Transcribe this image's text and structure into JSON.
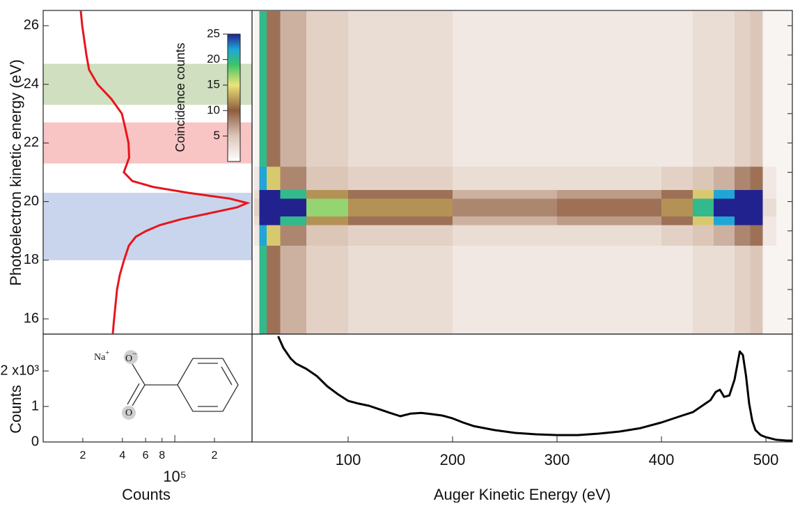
{
  "chart_data": [
    {
      "type": "line",
      "orientation": "vertical",
      "log_x": true,
      "xlabel": "Counts",
      "ylabel": "Photoelectron kinetic energy (eV)",
      "xlim": [
        10000,
        386000
      ],
      "xticks": [
        {
          "value": 20000,
          "label": "2"
        },
        {
          "value": 40000,
          "label": "4"
        },
        {
          "value": 60000,
          "label": "6"
        },
        {
          "value": 80000,
          "label": "8"
        },
        {
          "value": 100000,
          "label": "10⁵"
        },
        {
          "value": 200000,
          "label": "2"
        }
      ],
      "ylim": [
        15.48,
        26.52
      ],
      "yticks": [
        16,
        18,
        20,
        22,
        24,
        26
      ],
      "color": "#e8141c",
      "y": [
        15.5,
        16,
        16.5,
        17,
        17.5,
        18,
        18.5,
        18.8,
        19,
        19.2,
        19.4,
        19.6,
        19.8,
        19.95,
        20.1,
        20.3,
        20.5,
        20.7,
        21,
        21.5,
        22,
        22.5,
        23,
        23.5,
        24,
        24.5,
        25,
        26,
        26.5
      ],
      "values": [
        33800,
        34600,
        35500,
        36400,
        38200,
        41100,
        44800,
        50500,
        60700,
        77400,
        112000,
        182000,
        296000,
        355000,
        262000,
        126000,
        68500,
        47500,
        41000,
        45000,
        44500,
        42100,
        39600,
        33000,
        25900,
        22300,
        21300,
        19800,
        19300
      ],
      "bands": [
        {
          "from": 23.3,
          "to": 24.7,
          "color": "#cfdfbf"
        },
        {
          "from": 21.3,
          "to": 22.7,
          "color": "#f8c4c4"
        },
        {
          "from": 18.0,
          "to": 20.3,
          "color": "#c9d5ec"
        }
      ]
    },
    {
      "type": "heatmap",
      "xlim": [
        8,
        525.3
      ],
      "ylim": [
        15.48,
        26.52
      ],
      "yticks": [
        16,
        17,
        18,
        19,
        20,
        21,
        22,
        23,
        24,
        25,
        26
      ],
      "x_edges": [
        10,
        15,
        22,
        35,
        60,
        100,
        200,
        300,
        400,
        430,
        450,
        470,
        485,
        497,
        510,
        525
      ],
      "y_edges": [
        15.5,
        18.5,
        19.2,
        19.5,
        20.1,
        20.4,
        21.2,
        26.5
      ],
      "z": [
        [
          1,
          20,
          9,
          6,
          4,
          3,
          2,
          2,
          2,
          3,
          3,
          4,
          5,
          1,
          1
        ],
        [
          2,
          22,
          14,
          8,
          5,
          4,
          3,
          3,
          4,
          5,
          6,
          8,
          9,
          2,
          1
        ],
        [
          3,
          25,
          25,
          20,
          12,
          9,
          6,
          7,
          9,
          14,
          22,
          25,
          25,
          2,
          1
        ],
        [
          4,
          25,
          25,
          25,
          17,
          12,
          8,
          9,
          12,
          20,
          25,
          25,
          25,
          3,
          1
        ],
        [
          3,
          25,
          25,
          20,
          12,
          9,
          6,
          7,
          9,
          14,
          22,
          25,
          25,
          2,
          1
        ],
        [
          2,
          22,
          14,
          8,
          5,
          4,
          3,
          3,
          4,
          5,
          6,
          8,
          9,
          2,
          1
        ],
        [
          1,
          20,
          9,
          6,
          4,
          3,
          2,
          2,
          2,
          3,
          3,
          4,
          5,
          1,
          1
        ]
      ],
      "colormap": [
        [
          0,
          "#ffffff"
        ],
        [
          5,
          "#dcc6b8"
        ],
        [
          10,
          "#8e5c3e"
        ],
        [
          15,
          "#ece47a"
        ],
        [
          19,
          "#3cc468"
        ],
        [
          22,
          "#1fa6d6"
        ],
        [
          25,
          "#22228e"
        ]
      ],
      "colorbar": {
        "label": "Coincidence counts",
        "lim": [
          0,
          25
        ],
        "ticks": [
          5,
          10,
          15,
          20,
          25
        ]
      }
    },
    {
      "type": "line",
      "xlabel": "Auger Kinetic Energy (eV)",
      "ylabel": "Counts",
      "xlim": [
        8,
        525.3
      ],
      "xticks": [
        100,
        200,
        300,
        400,
        500
      ],
      "ylim": [
        0,
        3040
      ],
      "yticks": [
        0,
        {
          "value": 1000,
          "label": "1"
        },
        {
          "value": 2000,
          "label": "2 x10³"
        }
      ],
      "color": "#000000",
      "x": [
        33,
        38,
        45,
        50,
        60,
        70,
        80,
        90,
        100,
        110,
        120,
        130,
        140,
        150,
        160,
        170,
        180,
        190,
        200,
        210,
        220,
        240,
        260,
        280,
        300,
        320,
        340,
        360,
        380,
        400,
        420,
        430,
        440,
        447,
        452,
        456,
        460,
        465,
        470,
        475,
        478,
        481,
        484,
        487,
        490,
        495,
        500,
        510,
        520,
        525
      ],
      "values": [
        2980,
        2650,
        2350,
        2210,
        2060,
        1860,
        1570,
        1350,
        1160,
        1080,
        1020,
        920,
        820,
        725,
        800,
        820,
        785,
        745,
        665,
        550,
        450,
        335,
        255,
        215,
        195,
        195,
        235,
        295,
        390,
        550,
        745,
        840,
        1040,
        1180,
        1410,
        1470,
        1270,
        1310,
        1760,
        2550,
        2450,
        1860,
        1080,
        590,
        335,
        195,
        135,
        60,
        40,
        40
      ]
    }
  ],
  "molecule": {
    "cation": "Na",
    "cation_charge": "+",
    "anion_oxygen": "O",
    "anion_charge": "−",
    "oxygen": "O"
  }
}
